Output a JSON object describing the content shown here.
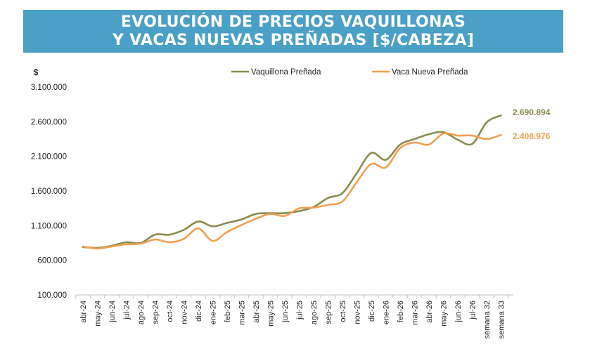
{
  "header": {
    "title_line1": "EVOLUCIÓN DE PRECIOS VAQUILLONAS",
    "title_line2": "Y VACAS NUEVAS PREÑADAS [$/CABEZA]"
  },
  "chart_data": {
    "type": "line",
    "ylabel": "$",
    "xlabel": "",
    "ylim": [
      100000,
      3100000
    ],
    "yticks": [
      100000,
      600000,
      1100000,
      1600000,
      2100000,
      2600000,
      3100000
    ],
    "ytick_labels": [
      "100.000",
      "600.000",
      "1.100.000",
      "1.600.000",
      "2.100.000",
      "2.600.000",
      "3.100.000"
    ],
    "grid": false,
    "legend_position": "top",
    "categories": [
      "abr-24",
      "may-24",
      "jun-24",
      "jul-24",
      "ago-24",
      "sep-24",
      "oct-24",
      "nov-24",
      "dic-24",
      "ene-25",
      "feb-25",
      "mar-25",
      "abr-25",
      "may-25",
      "jun-25",
      "jul-25",
      "ago-25",
      "sep-25",
      "oct-25",
      "nov-25",
      "dic-25",
      "ene-26",
      "feb-26",
      "mar-26",
      "abr-26",
      "may-26",
      "jun-26",
      "jul-26",
      "semana 32",
      "semana 33"
    ],
    "series": [
      {
        "name": "Vaquillona Preñada",
        "color": "#8a8a4e",
        "values": [
          790000,
          780000,
          810000,
          860000,
          850000,
          970000,
          970000,
          1040000,
          1160000,
          1090000,
          1140000,
          1190000,
          1270000,
          1280000,
          1280000,
          1310000,
          1370000,
          1500000,
          1570000,
          1860000,
          2150000,
          2050000,
          2270000,
          2350000,
          2420000,
          2450000,
          2340000,
          2280000,
          2590000,
          2690894
        ],
        "end_label": "2.690.894"
      },
      {
        "name": "Vaca Nueva Preñada",
        "color": "#f0a050",
        "values": [
          800000,
          770000,
          800000,
          830000,
          840000,
          900000,
          860000,
          910000,
          1060000,
          880000,
          1010000,
          1110000,
          1200000,
          1270000,
          1240000,
          1350000,
          1360000,
          1400000,
          1450000,
          1730000,
          1990000,
          1940000,
          2220000,
          2300000,
          2270000,
          2430000,
          2400000,
          2400000,
          2350000,
          2408976
        ],
        "end_label": "2.408.976"
      }
    ]
  }
}
